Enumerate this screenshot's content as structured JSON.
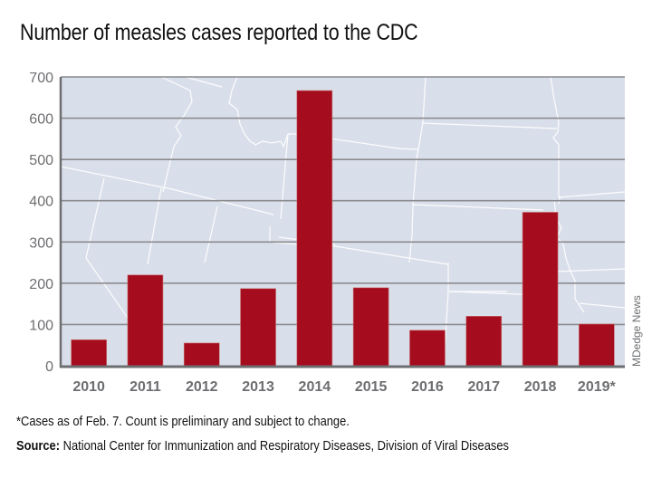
{
  "title": "Number of measles cases reported to the CDC",
  "footnote": "*Cases as of Feb. 7. Count is preliminary and subject to change.",
  "source_label": "Source:",
  "source_text": " National Center for Immunization and Respiratory Diseases, Division of Viral Diseases",
  "credit": "MDedge News",
  "colors": {
    "bar": "#a50d1f",
    "plot_background": "#d9dfea",
    "gridline": "#8a8b8f",
    "axis": "#6d6e71",
    "tick_label": "#6d6e71",
    "map_lines": "#ffffff"
  },
  "chart_data": {
    "type": "bar",
    "title": "Number of measles cases reported to the CDC",
    "xlabel": "",
    "ylabel": "",
    "categories": [
      "2010",
      "2011",
      "2012",
      "2013",
      "2014",
      "2015",
      "2016",
      "2017",
      "2018",
      "2019*"
    ],
    "values": [
      63,
      220,
      55,
      187,
      667,
      189,
      86,
      120,
      372,
      101
    ],
    "ylim": [
      0,
      700
    ],
    "yticks": [
      0,
      100,
      200,
      300,
      400,
      500,
      600,
      700
    ],
    "grid": true,
    "legend": "none",
    "background": "map of western/central US states"
  }
}
